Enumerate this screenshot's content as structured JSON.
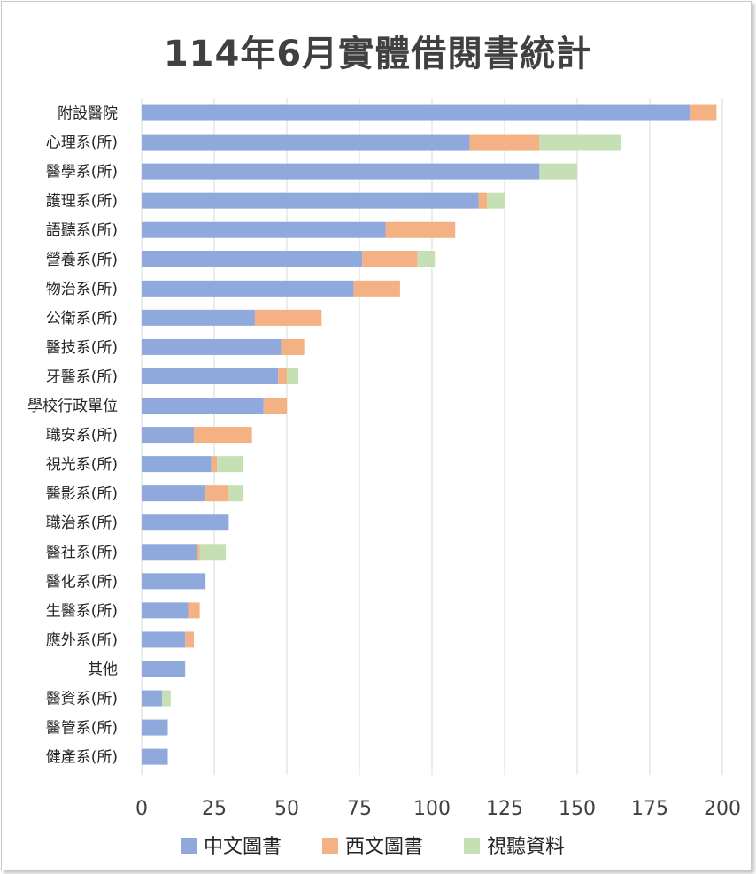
{
  "chart_data": {
    "type": "bar",
    "orientation": "horizontal",
    "stacked": true,
    "title": "114年6月實體借閱書統計",
    "categories": [
      "附設醫院",
      "心理系(所)",
      "醫學系(所)",
      "護理系(所)",
      "語聽系(所)",
      "營養系(所)",
      "物治系(所)",
      "公衛系(所)",
      "醫技系(所)",
      "牙醫系(所)",
      "學校行政單位",
      "職安系(所)",
      "視光系(所)",
      "醫影系(所)",
      "職治系(所)",
      "醫社系(所)",
      "醫化系(所)",
      "生醫系(所)",
      "應外系(所)",
      "其他",
      "醫資系(所)",
      "醫管系(所)",
      "健產系(所)"
    ],
    "series": [
      {
        "name": "中文圖書",
        "color": "#8fa9dc",
        "values": [
          189,
          113,
          137,
          116,
          84,
          76,
          73,
          39,
          48,
          47,
          42,
          18,
          24,
          22,
          30,
          19,
          22,
          16,
          15,
          15,
          7,
          9,
          9
        ]
      },
      {
        "name": "西文圖書",
        "color": "#f4b183",
        "values": [
          9,
          24,
          0,
          3,
          24,
          19,
          16,
          23,
          8,
          3,
          8,
          20,
          2,
          8,
          0,
          1,
          0,
          4,
          3,
          0,
          0,
          0,
          0
        ]
      },
      {
        "name": "視聽資料",
        "color": "#c5e0b4",
        "values": [
          0,
          28,
          13,
          6,
          0,
          6,
          0,
          0,
          0,
          4,
          0,
          0,
          9,
          5,
          0,
          9,
          0,
          0,
          0,
          0,
          3,
          0,
          0
        ]
      }
    ],
    "xlim": [
      0,
      200
    ],
    "xticks": [
      0,
      25,
      50,
      75,
      100,
      125,
      150,
      175,
      200
    ],
    "grid": true,
    "legend_position": "bottom"
  }
}
